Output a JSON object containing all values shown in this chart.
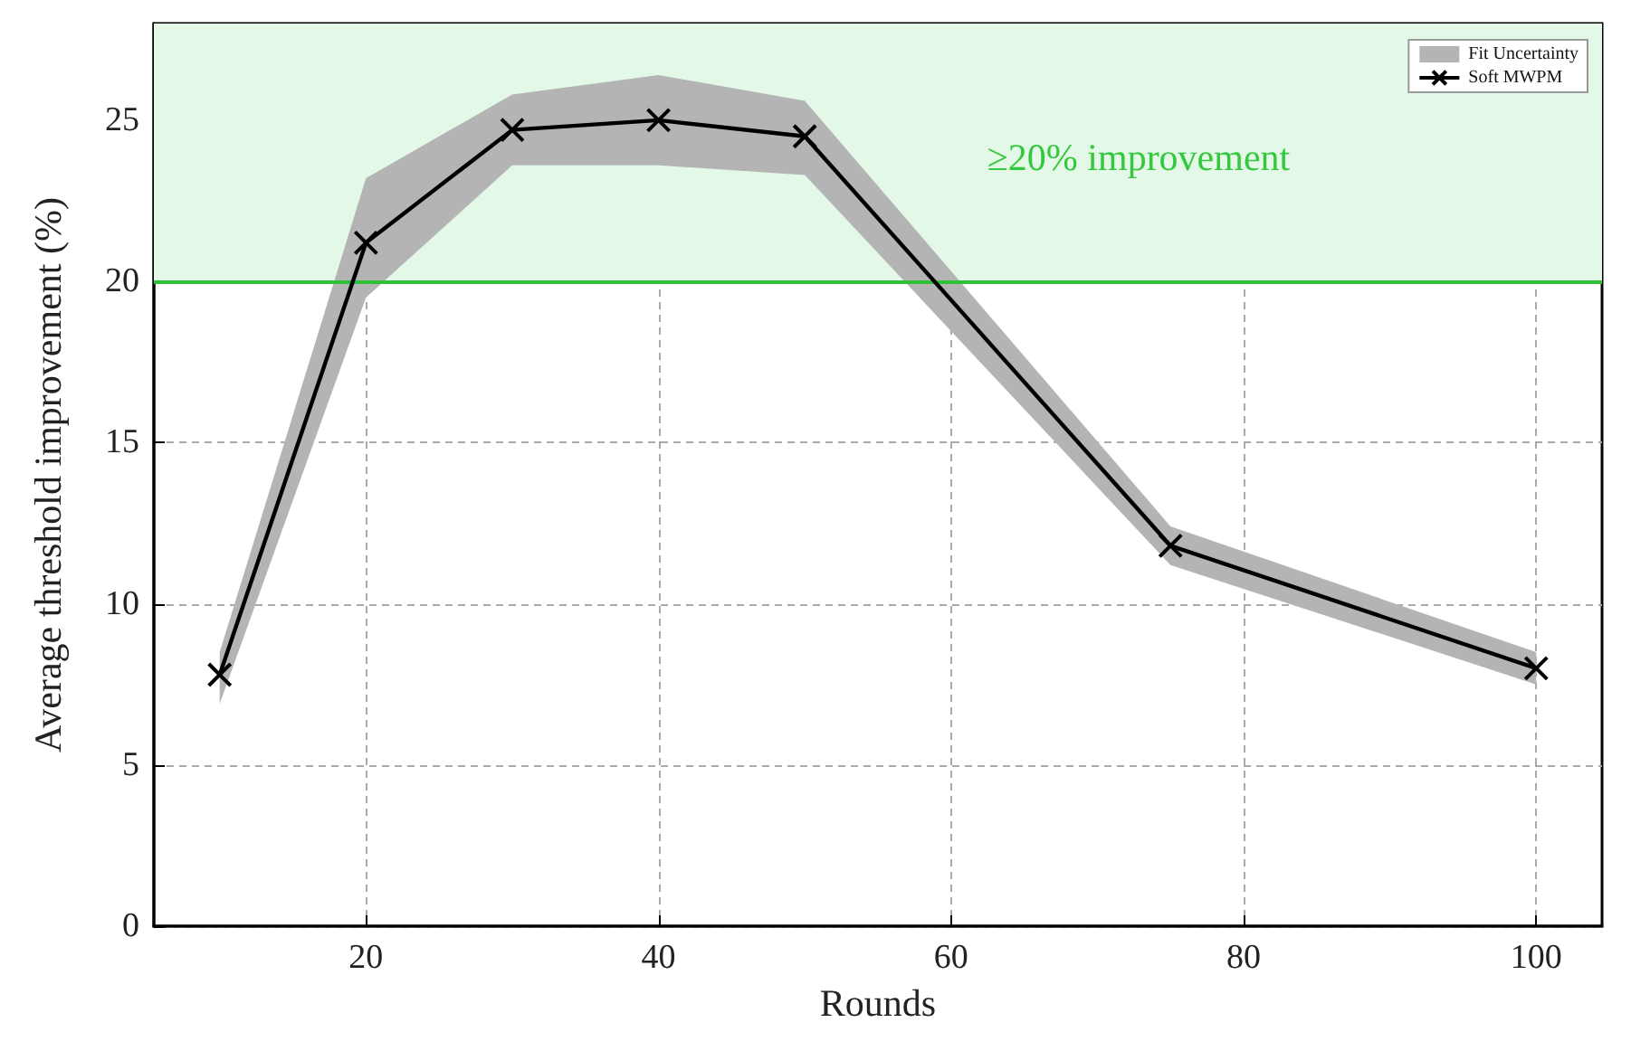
{
  "chart_data": {
    "type": "line",
    "xlabel": "Rounds",
    "ylabel": "Average threshold improvement (%)",
    "x": [
      10,
      20,
      30,
      40,
      50,
      75,
      100
    ],
    "series": [
      {
        "name": "Fit Uncertainty",
        "type": "area",
        "color": "#b4b4b4",
        "values": [
          null,
          null,
          null,
          null,
          null,
          null,
          null
        ],
        "lower": [
          6.9,
          19.5,
          23.6,
          23.6,
          23.3,
          11.2,
          7.5
        ],
        "upper": [
          8.5,
          23.2,
          25.8,
          26.4,
          25.6,
          12.4,
          8.5
        ]
      },
      {
        "name": "Soft MWPM",
        "color": "#000000",
        "values": [
          7.8,
          21.2,
          24.7,
          25.0,
          24.5,
          11.8,
          8.0
        ]
      }
    ],
    "xlim": [
      5.5,
      104.5
    ],
    "xticks": [
      20,
      40,
      60,
      80,
      100
    ],
    "ylim": [
      0,
      28
    ],
    "yticks": [
      0,
      5,
      10,
      15,
      20,
      25
    ],
    "bands": [
      {
        "axis": "y",
        "from": 20,
        "to": 28,
        "label": "≥20% improvement",
        "color": "#e3f8e6"
      }
    ],
    "ref_lines": [
      {
        "axis": "y",
        "value": 20,
        "color": "#2fbf3a"
      }
    ],
    "grid": true,
    "legend": "top right",
    "marker": "cross",
    "line_style": "solid"
  }
}
